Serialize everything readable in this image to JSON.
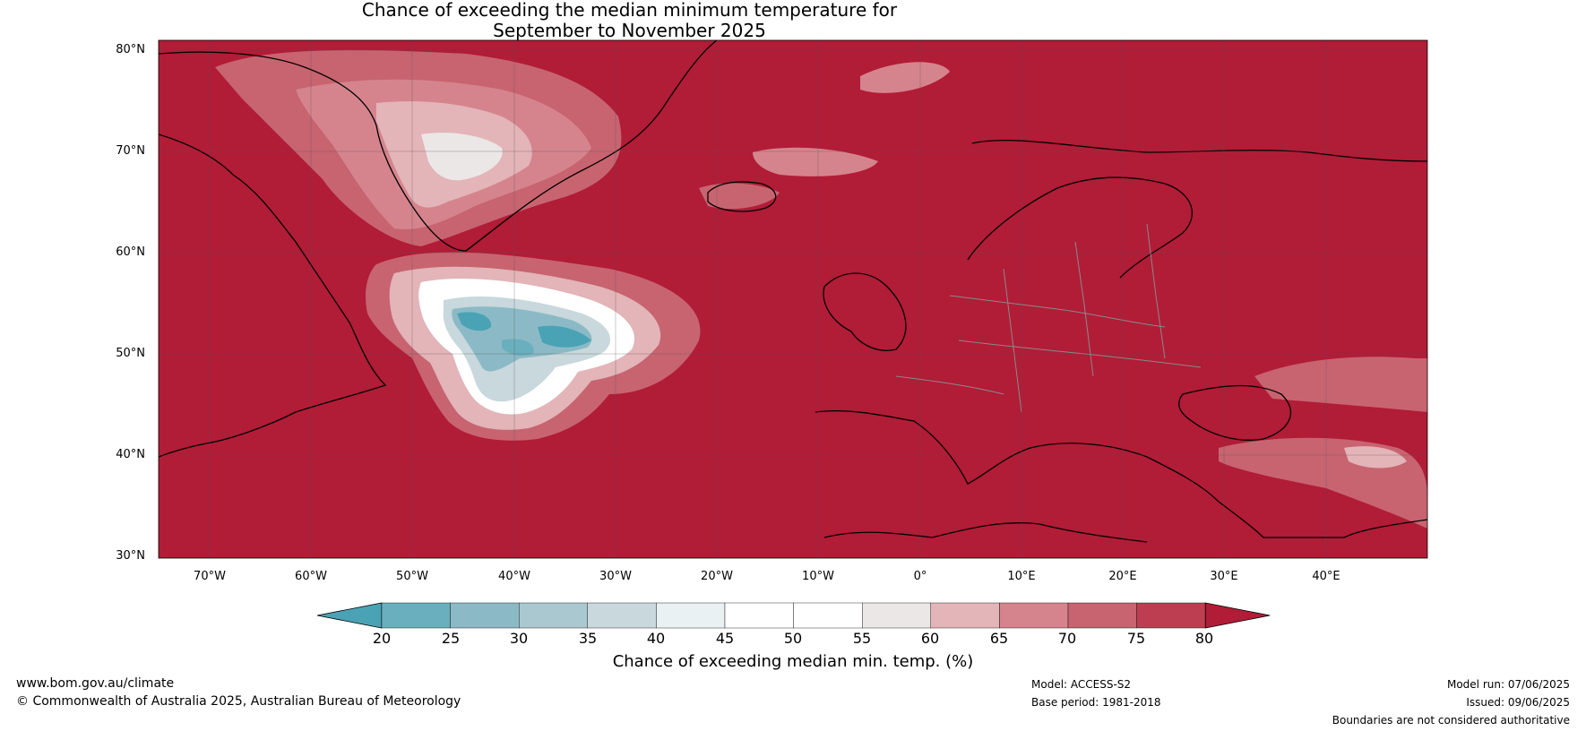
{
  "title": {
    "line1": "Chance of exceeding the median minimum temperature for",
    "line2": "September to November 2025"
  },
  "map": {
    "lat_labels": [
      "80°N",
      "70°N",
      "60°N",
      "50°N",
      "40°N",
      "30°N"
    ],
    "lon_labels": [
      "70°W",
      "60°W",
      "50°W",
      "40°W",
      "30°W",
      "20°W",
      "10°W",
      "0°",
      "10°E",
      "20°E",
      "30°E",
      "40°E"
    ],
    "extent": {
      "lon_min": -75,
      "lon_max": 50,
      "lat_min": 30,
      "lat_max": 81
    },
    "background_color": "#b11c37"
  },
  "colorbar": {
    "ticks": [
      "20",
      "25",
      "30",
      "35",
      "40",
      "45",
      "50",
      "55",
      "60",
      "65",
      "70",
      "75",
      "80"
    ],
    "colors": [
      "#4aa3b5",
      "#6aafbd",
      "#8bbac6",
      "#aac8d0",
      "#c8d8dc",
      "#e9f1f2",
      "#ffffff",
      "#ffffff",
      "#ebe7e6",
      "#e3b4b8",
      "#d5848d",
      "#c76470",
      "#bd3e50",
      "#b11c37"
    ],
    "label": "Chance of exceeding median min. temp. (%)"
  },
  "footer": {
    "website": "www.bom.gov.au/climate",
    "copyright": "© Commonwealth of Australia 2025, Australian Bureau of Meteorology",
    "model": "Model: ACCESS-S2",
    "base_period": "Base period: 1981-2018",
    "model_run": "Model run: 07/06/2025",
    "issued": "Issued: 09/06/2025",
    "disclaimer": "Boundaries are not considered authoritative"
  }
}
